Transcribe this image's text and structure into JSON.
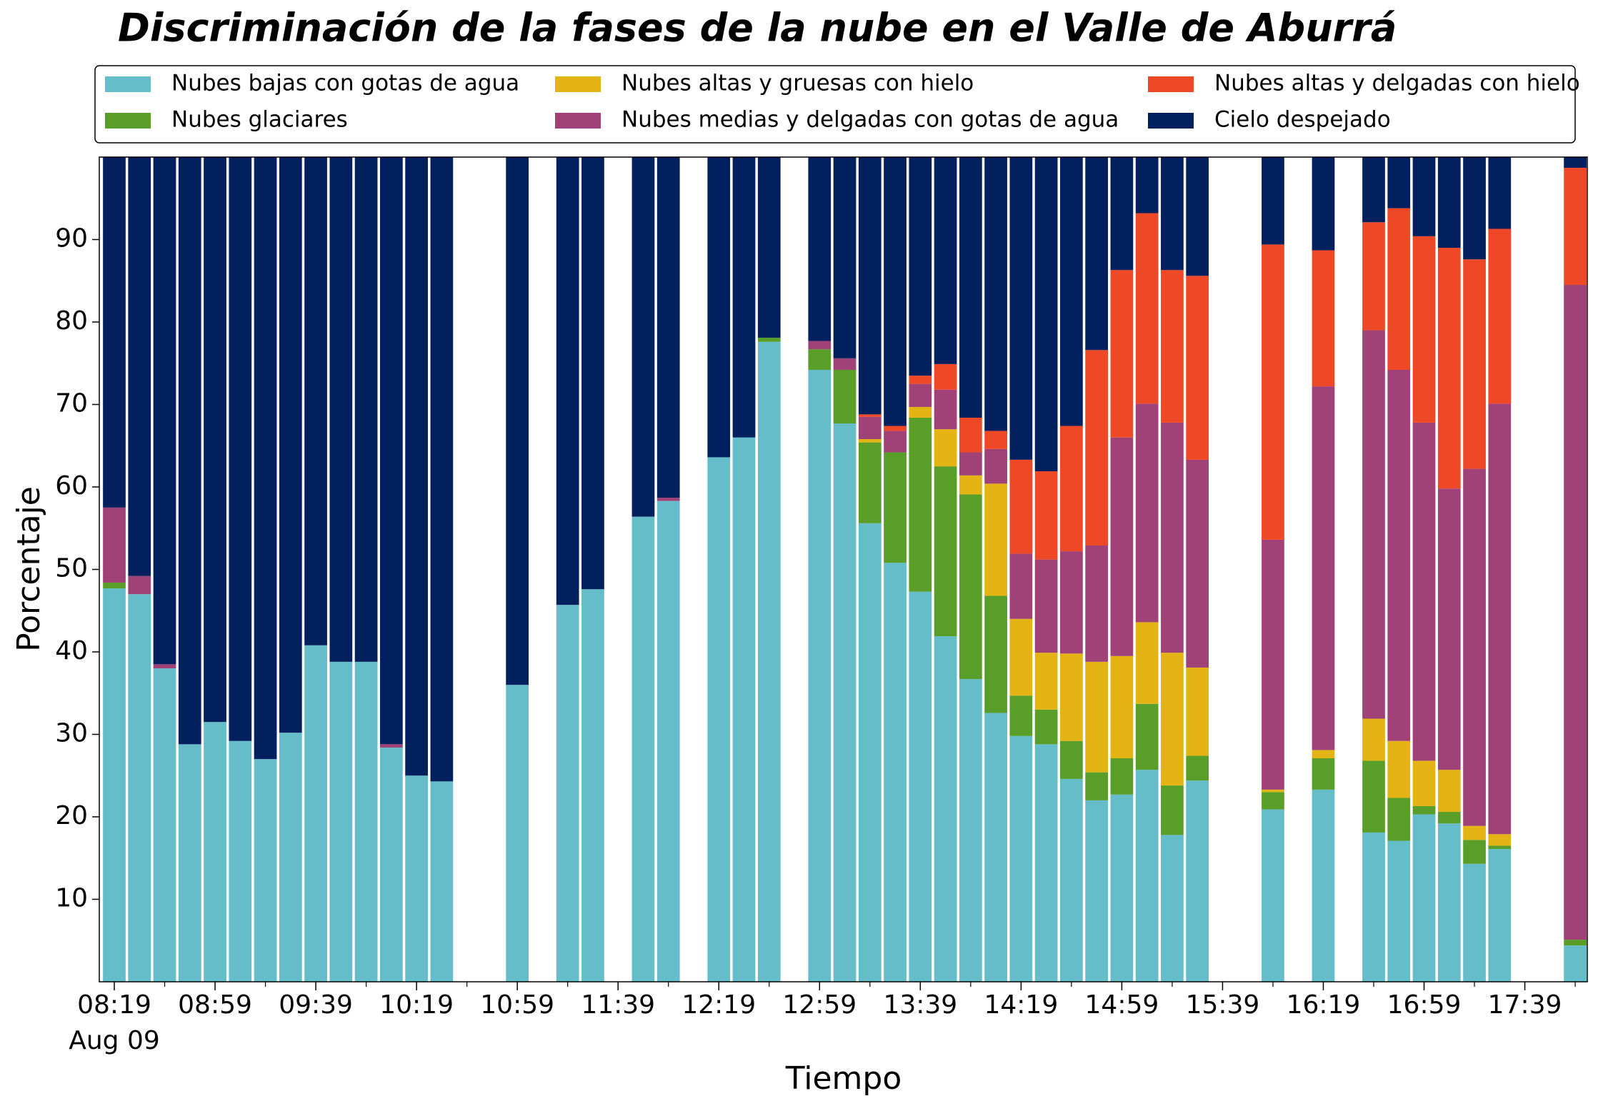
{
  "chart_data": {
    "type": "stacked_bar",
    "title": "Discriminación de la fases de la nube en el Valle de Aburrá",
    "xlabel": "Tiempo",
    "ylabel": "Porcentaje",
    "date_label": "Aug 09",
    "categories": [
      "08:19",
      null,
      null,
      null,
      "08:59",
      null,
      null,
      null,
      "09:39",
      null,
      null,
      null,
      "10:19",
      null,
      null,
      null,
      "10:59",
      null,
      null,
      null,
      "11:39",
      null,
      null,
      null,
      "12:19",
      null,
      null,
      null,
      "12:59",
      null,
      null,
      null,
      "13:39",
      null,
      null,
      null,
      "14:19",
      null,
      null,
      null,
      "14:59",
      null,
      null,
      null,
      "15:39",
      null,
      null,
      null,
      "16:19",
      null,
      null,
      null,
      "16:59",
      null,
      null,
      null,
      "17:39",
      null,
      null
    ],
    "series": [
      {
        "name": "Nubes bajas con gotas de agua",
        "color": "#65bdc9",
        "values": [
          47.7,
          47,
          38,
          28.8,
          31.5,
          29.2,
          27,
          30.2,
          40.8,
          38.8,
          38.8,
          28.4,
          25,
          24.3,
          null,
          null,
          36,
          null,
          45.7,
          47.6,
          null,
          56.4,
          58.3,
          null,
          63.6,
          66,
          77.6,
          null,
          74.2,
          67.7,
          55.6,
          50.8,
          47.3,
          41.9,
          36.7,
          32.6,
          29.8,
          28.8,
          24.6,
          22,
          22.7,
          25.7,
          17.8,
          24.4,
          null,
          null,
          20.9,
          null,
          23.3,
          null,
          18.1,
          17.1,
          20.3,
          19.2,
          14.3,
          16.1,
          null,
          null,
          4.4
        ]
      },
      {
        "name": "Nubes glaciares",
        "color": "#5a9e2a",
        "values": [
          0.7,
          0,
          0,
          0,
          0,
          0,
          0,
          0,
          0,
          0,
          0,
          0,
          0,
          0,
          null,
          null,
          0,
          null,
          0,
          0,
          null,
          0,
          0,
          null,
          0,
          0,
          0.5,
          null,
          2.5,
          6.5,
          9.8,
          13.4,
          21.1,
          20.6,
          22.4,
          14.2,
          4.9,
          4.2,
          4.6,
          3.4,
          4.4,
          8,
          6,
          3,
          null,
          null,
          2.1,
          null,
          3.8,
          null,
          8.7,
          5.2,
          1,
          1.4,
          2.9,
          0.4,
          null,
          null,
          0.7
        ]
      },
      {
        "name": "Nubes altas y gruesas con hielo",
        "color": "#e3b414",
        "values": [
          0,
          0,
          0,
          0,
          0,
          0,
          0,
          0,
          0,
          0,
          0,
          0,
          0,
          0,
          null,
          null,
          0,
          null,
          0,
          0,
          null,
          0,
          0,
          null,
          0,
          0,
          0,
          null,
          0,
          0,
          0.4,
          0,
          1.3,
          4.5,
          2.3,
          13.6,
          9.3,
          6.9,
          10.6,
          13.4,
          12.4,
          9.9,
          16.1,
          10.7,
          null,
          null,
          0.3,
          null,
          1,
          null,
          5.1,
          6.9,
          5.5,
          5.1,
          1.7,
          1.4,
          null,
          null,
          0
        ]
      },
      {
        "name": "Nubes medias y delgadas con gotas de agua",
        "color": "#a04277",
        "values": [
          9.1,
          2.2,
          0.5,
          0,
          0,
          0,
          0,
          0,
          0,
          0,
          0,
          0.4,
          0,
          0,
          null,
          null,
          0,
          null,
          0,
          0,
          null,
          0,
          0.4,
          null,
          0,
          0,
          0,
          null,
          1,
          1.4,
          2.7,
          2.6,
          2.8,
          4.8,
          2.8,
          4.2,
          7.9,
          11.3,
          12.4,
          14.1,
          26.5,
          26.5,
          27.9,
          25.2,
          null,
          null,
          30.3,
          null,
          44.1,
          null,
          47.1,
          45,
          41,
          34.1,
          43.3,
          52.2,
          null,
          null,
          79.4
        ]
      },
      {
        "name": "Nubes altas y delgadas con hielo",
        "color": "#ee4827",
        "values": [
          0,
          0,
          0,
          0,
          0,
          0,
          0,
          0,
          0,
          0,
          0,
          0,
          0,
          0,
          null,
          null,
          0,
          null,
          0,
          0,
          null,
          0,
          0,
          null,
          0,
          0,
          0,
          null,
          0,
          0,
          0.3,
          0.6,
          1,
          3.1,
          4.2,
          2.2,
          11.4,
          10.7,
          15.2,
          23.7,
          20.3,
          23.1,
          18.5,
          22.3,
          null,
          null,
          35.8,
          null,
          16.5,
          null,
          13.1,
          19.6,
          22.6,
          29.2,
          25.4,
          21.2,
          null,
          null,
          14.2
        ]
      },
      {
        "name": "Cielo despejado",
        "color": "#03205e",
        "values": [
          42.5,
          50.8,
          61.5,
          71.2,
          68.5,
          70.8,
          73,
          69.8,
          59.2,
          61.2,
          61.2,
          71.2,
          75,
          75.7,
          null,
          null,
          64,
          null,
          54.3,
          52.4,
          null,
          43.6,
          41.3,
          null,
          36.4,
          34,
          21.9,
          null,
          22.3,
          24.4,
          31.2,
          32.6,
          26.5,
          25.1,
          31.6,
          33.2,
          36.7,
          38.1,
          32.6,
          23.4,
          13.7,
          6.8,
          13.7,
          14.4,
          null,
          null,
          10.6,
          null,
          11.3,
          null,
          7.9,
          6.2,
          9.6,
          11,
          12.4,
          8.7,
          null,
          null,
          1.3
        ]
      }
    ],
    "ylim": [
      0,
      100
    ],
    "yticks": [
      10,
      20,
      30,
      40,
      50,
      60,
      70,
      80,
      90
    ],
    "legend": "top"
  }
}
